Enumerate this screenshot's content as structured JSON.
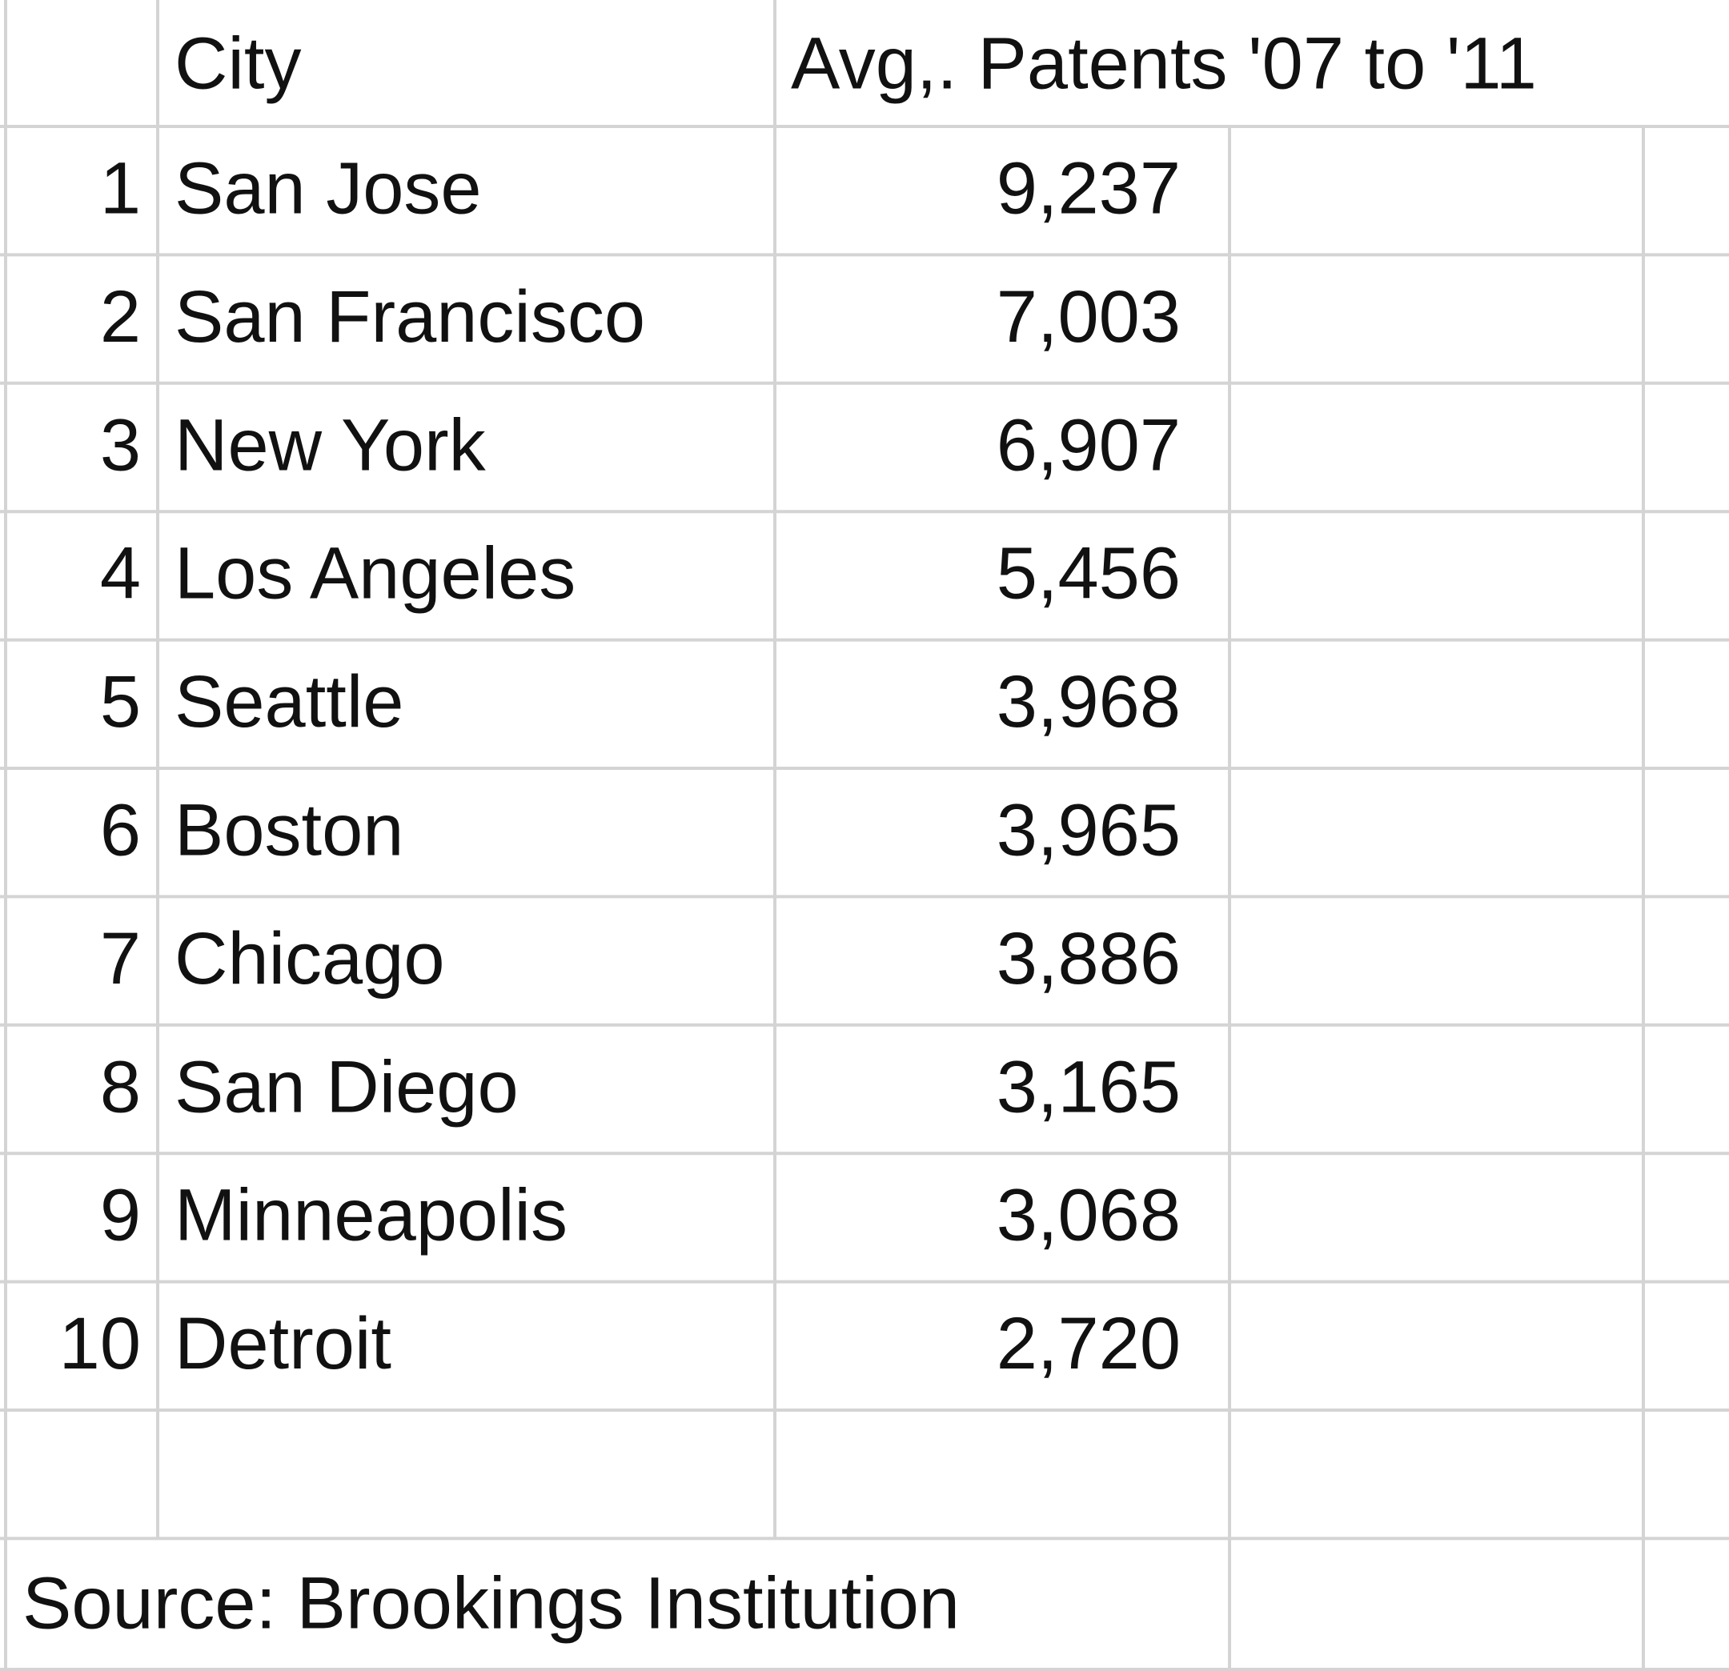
{
  "table": {
    "header": [
      "City",
      "Avg,. Patents '07 to '11"
    ],
    "rows": [
      [
        "1",
        "San Jose",
        "9,237"
      ],
      [
        "2",
        "San Francisco",
        "7,003"
      ],
      [
        "3",
        "New York",
        "6,907"
      ],
      [
        "4",
        "Los Angeles",
        "5,456"
      ],
      [
        "5",
        "Seattle",
        "3,968"
      ],
      [
        "6",
        "Boston",
        "3,965"
      ],
      [
        "7",
        "Chicago",
        "3,886"
      ],
      [
        "8",
        "San Diego",
        "3,165"
      ],
      [
        "9",
        "Minneapolis",
        "3,068"
      ],
      [
        "10",
        "Detroit",
        "2,720"
      ]
    ]
  },
  "source": "Source: Brookings Institution"
}
